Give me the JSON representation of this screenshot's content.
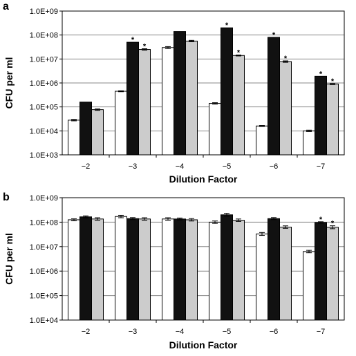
{
  "chart_data": [
    {
      "type": "bar",
      "panel_label": "a",
      "xlabel": "Dilution Factor",
      "ylabel": "CFU per ml",
      "scale": "log10",
      "ylim": [
        1000,
        1000000000
      ],
      "yticks": [
        "1.0E+03",
        "1.0E+04",
        "1.0E+05",
        "1.0E+06",
        "1.0E+07",
        "1.0E+08",
        "1.0E+09"
      ],
      "grid": true,
      "legend": "none",
      "categories": [
        "−2",
        "−3",
        "−4",
        "−5",
        "−6",
        "−7"
      ],
      "series": [
        {
          "color": "#ffffff",
          "values": [
            28000,
            450000,
            30000000,
            140000,
            16000,
            10000
          ],
          "errors": [
            0.03,
            0.02,
            0.04,
            0.03,
            0.02,
            0.03
          ],
          "stars": [
            false,
            false,
            false,
            false,
            false,
            false
          ]
        },
        {
          "color": "#111111",
          "values": [
            160000,
            50000000,
            140000000,
            200000000,
            80000000,
            1900000
          ],
          "errors": [
            0,
            0,
            0,
            0,
            0,
            0
          ],
          "stars": [
            false,
            true,
            false,
            true,
            true,
            true
          ]
        },
        {
          "color": "#cccccc",
          "values": [
            77000,
            25000000,
            56000000,
            14000000,
            7800000,
            900000
          ],
          "errors": [
            0.03,
            0.03,
            0.03,
            0.02,
            0.03,
            0.02
          ],
          "stars": [
            false,
            true,
            false,
            true,
            true,
            true
          ]
        }
      ]
    },
    {
      "type": "bar",
      "panel_label": "b",
      "xlabel": "Dilution Factor",
      "ylabel": "CFU per ml",
      "scale": "log10",
      "ylim": [
        10000,
        1000000000
      ],
      "yticks": [
        "1.0E+04",
        "1.0E+05",
        "1.0E+06",
        "1.0E+07",
        "1.0E+08",
        "1.0E+09"
      ],
      "grid": true,
      "legend": "none",
      "categories": [
        "−2",
        "−3",
        "−4",
        "−5",
        "−6",
        "−7"
      ],
      "series": [
        {
          "color": "#ffffff",
          "values": [
            125000000,
            170000000,
            135000000,
            100000000,
            33000000,
            6300000
          ],
          "errors": [
            0.04,
            0.05,
            0.05,
            0.05,
            0.06,
            0.05
          ],
          "stars": [
            false,
            false,
            false,
            false,
            false,
            false
          ]
        },
        {
          "color": "#111111",
          "values": [
            165000000,
            140000000,
            135000000,
            200000000,
            140000000,
            97000000
          ],
          "errors": [
            0.04,
            0.04,
            0.04,
            0.06,
            0.04,
            0.03
          ],
          "stars": [
            false,
            false,
            false,
            false,
            false,
            true
          ]
        },
        {
          "color": "#cccccc",
          "values": [
            135000000,
            135000000,
            125000000,
            120000000,
            63000000,
            62000000
          ],
          "errors": [
            0.05,
            0.05,
            0.05,
            0.05,
            0.05,
            0.06
          ],
          "stars": [
            false,
            false,
            false,
            false,
            false,
            true
          ]
        }
      ]
    }
  ]
}
